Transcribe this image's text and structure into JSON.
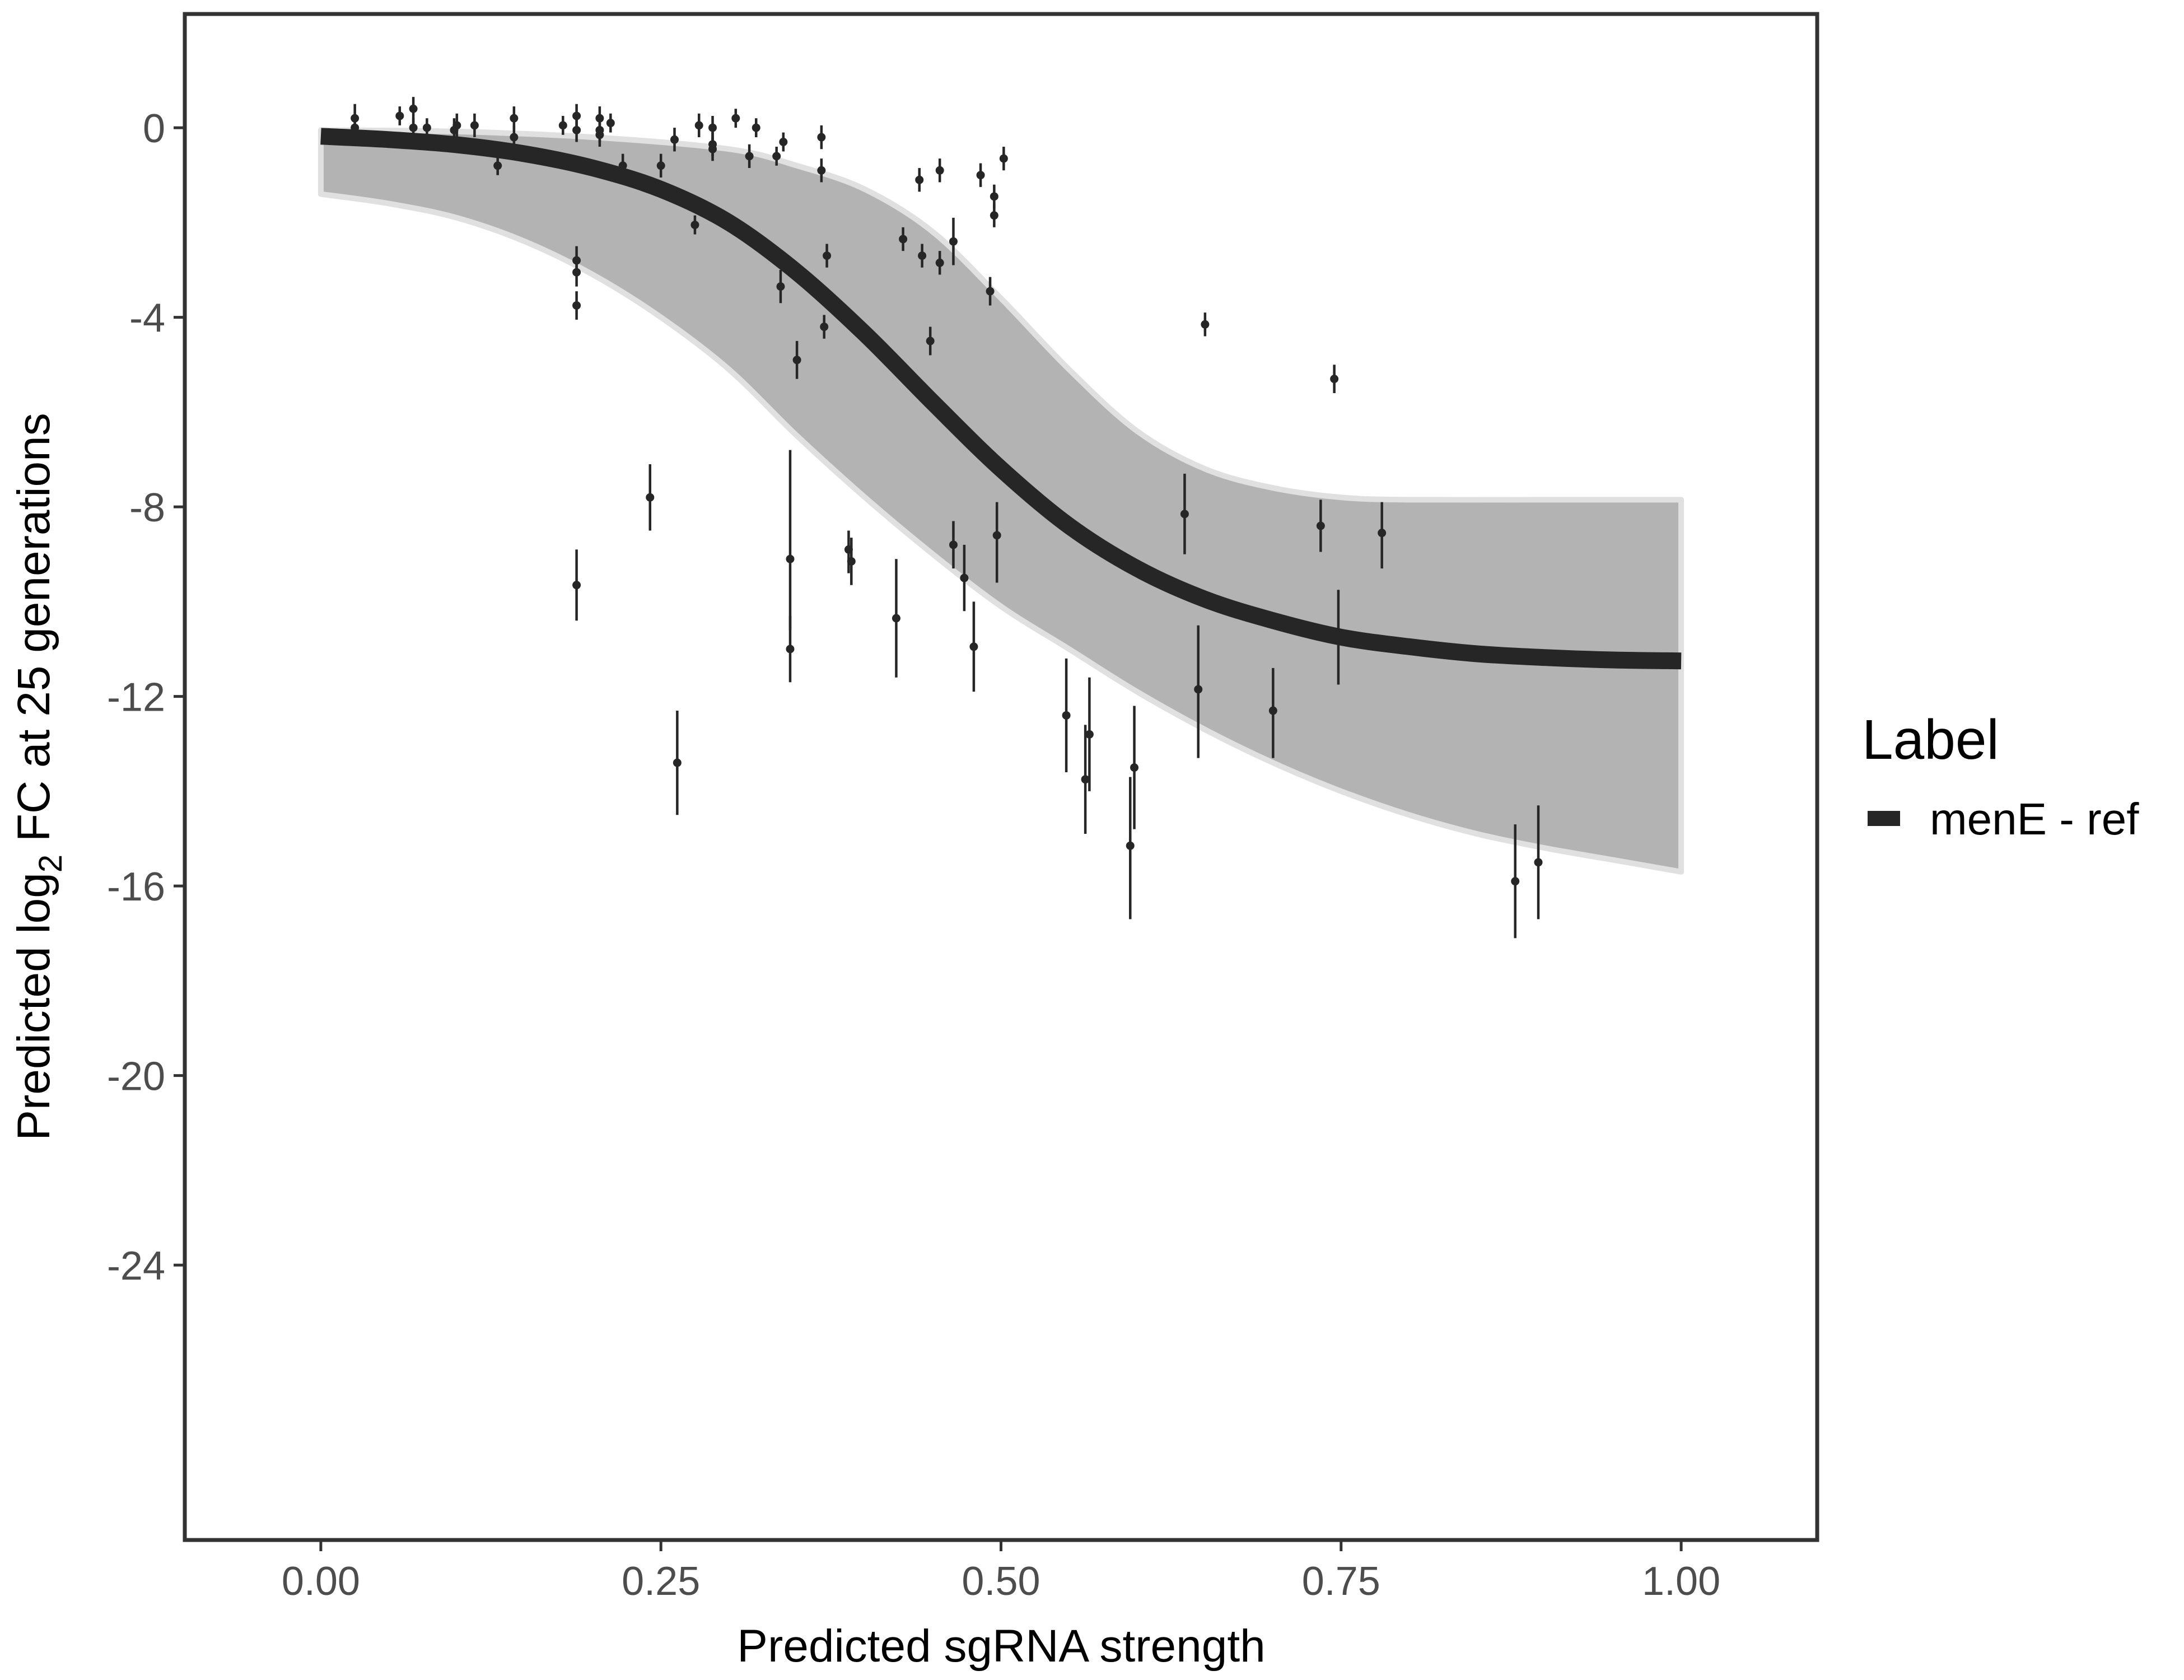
{
  "chart_data": {
    "type": "line",
    "title": "",
    "xlabel": "Predicted sgRNA strength",
    "ylabel_parts": {
      "before": "Predicted  log",
      "subscript": "2",
      "after": " FC at 25 generations"
    },
    "xlim": [
      -0.1,
      1.1
    ],
    "ylim": [
      -29.8,
      2.4
    ],
    "x_ticks": [
      {
        "value": 0.0,
        "label": "0.00"
      },
      {
        "value": 0.25,
        "label": "0.25"
      },
      {
        "value": 0.5,
        "label": "0.50"
      },
      {
        "value": 0.75,
        "label": "0.75"
      },
      {
        "value": 1.0,
        "label": "1.00"
      }
    ],
    "y_ticks": [
      {
        "value": 0,
        "label": "0"
      },
      {
        "value": -4,
        "label": "-4"
      },
      {
        "value": -8,
        "label": "-8"
      },
      {
        "value": -12,
        "label": "-12"
      },
      {
        "value": -16,
        "label": "-16"
      },
      {
        "value": -20,
        "label": "-20"
      },
      {
        "value": -24,
        "label": "-24"
      }
    ],
    "grid": false,
    "legend": {
      "title": "Label",
      "placement": "right",
      "entries": [
        {
          "label": "menE - ref",
          "color": "#262626"
        }
      ]
    },
    "fit_curve": {
      "name": "menE - ref",
      "color": "#262626",
      "points": [
        [
          0.0,
          -0.18
        ],
        [
          0.05,
          -0.25
        ],
        [
          0.1,
          -0.36
        ],
        [
          0.15,
          -0.55
        ],
        [
          0.2,
          -0.85
        ],
        [
          0.25,
          -1.3
        ],
        [
          0.3,
          -2.0
        ],
        [
          0.35,
          -3.05
        ],
        [
          0.4,
          -4.35
        ],
        [
          0.45,
          -5.8
        ],
        [
          0.5,
          -7.2
        ],
        [
          0.55,
          -8.4
        ],
        [
          0.6,
          -9.3
        ],
        [
          0.65,
          -9.95
        ],
        [
          0.7,
          -10.4
        ],
        [
          0.75,
          -10.75
        ],
        [
          0.8,
          -10.95
        ],
        [
          0.85,
          -11.1
        ],
        [
          0.9,
          -11.18
        ],
        [
          0.95,
          -11.23
        ],
        [
          1.0,
          -11.25
        ]
      ]
    },
    "posterior_band": {
      "color": "#a6a6a6",
      "upper": [
        [
          0.0,
          -0.05
        ],
        [
          0.1,
          -0.08
        ],
        [
          0.2,
          -0.2
        ],
        [
          0.3,
          -0.45
        ],
        [
          0.35,
          -0.8
        ],
        [
          0.4,
          -1.3
        ],
        [
          0.45,
          -2.2
        ],
        [
          0.5,
          -3.6
        ],
        [
          0.55,
          -5.1
        ],
        [
          0.6,
          -6.4
        ],
        [
          0.65,
          -7.2
        ],
        [
          0.7,
          -7.6
        ],
        [
          0.75,
          -7.8
        ],
        [
          0.8,
          -7.85
        ],
        [
          0.9,
          -7.85
        ],
        [
          1.0,
          -7.85
        ]
      ],
      "lower": [
        [
          0.0,
          -1.4
        ],
        [
          0.05,
          -1.6
        ],
        [
          0.1,
          -1.9
        ],
        [
          0.15,
          -2.4
        ],
        [
          0.2,
          -3.1
        ],
        [
          0.25,
          -4.0
        ],
        [
          0.3,
          -5.1
        ],
        [
          0.35,
          -6.5
        ],
        [
          0.4,
          -7.8
        ],
        [
          0.45,
          -9.0
        ],
        [
          0.5,
          -10.1
        ],
        [
          0.55,
          -11.0
        ],
        [
          0.6,
          -11.9
        ],
        [
          0.65,
          -12.7
        ],
        [
          0.7,
          -13.4
        ],
        [
          0.75,
          -14.0
        ],
        [
          0.8,
          -14.5
        ],
        [
          0.85,
          -14.9
        ],
        [
          0.9,
          -15.2
        ],
        [
          0.95,
          -15.45
        ],
        [
          1.0,
          -15.7
        ]
      ]
    },
    "points": [
      {
        "x": 0.025,
        "y": 0.2,
        "lo": -0.1,
        "hi": 0.5
      },
      {
        "x": 0.025,
        "y": 0.0,
        "lo": -0.2,
        "hi": 0.2
      },
      {
        "x": 0.058,
        "y": 0.25,
        "lo": 0.05,
        "hi": 0.45
      },
      {
        "x": 0.068,
        "y": 0.4,
        "lo": 0.1,
        "hi": 0.65
      },
      {
        "x": 0.068,
        "y": 0.0,
        "lo": -0.2,
        "hi": 0.2
      },
      {
        "x": 0.078,
        "y": 0.0,
        "lo": -0.2,
        "hi": 0.2
      },
      {
        "x": 0.098,
        "y": -0.05,
        "lo": -0.3,
        "hi": 0.2
      },
      {
        "x": 0.1,
        "y": 0.05,
        "lo": -0.2,
        "hi": 0.3
      },
      {
        "x": 0.113,
        "y": 0.05,
        "lo": -0.2,
        "hi": 0.3
      },
      {
        "x": 0.13,
        "y": -0.8,
        "lo": -1.0,
        "hi": -0.55
      },
      {
        "x": 0.142,
        "y": 0.2,
        "lo": -0.05,
        "hi": 0.45
      },
      {
        "x": 0.142,
        "y": -0.2,
        "lo": -0.45,
        "hi": 0.05
      },
      {
        "x": 0.178,
        "y": 0.05,
        "lo": -0.15,
        "hi": 0.25
      },
      {
        "x": 0.188,
        "y": 0.25,
        "lo": -0.05,
        "hi": 0.5
      },
      {
        "x": 0.188,
        "y": -0.05,
        "lo": -0.3,
        "hi": 0.2
      },
      {
        "x": 0.188,
        "y": -2.8,
        "lo": -3.1,
        "hi": -2.5
      },
      {
        "x": 0.188,
        "y": -3.05,
        "lo": -3.35,
        "hi": -2.75
      },
      {
        "x": 0.188,
        "y": -3.75,
        "lo": -4.05,
        "hi": -3.45
      },
      {
        "x": 0.188,
        "y": -9.65,
        "lo": -10.4,
        "hi": -8.9
      },
      {
        "x": 0.205,
        "y": 0.2,
        "lo": -0.05,
        "hi": 0.45
      },
      {
        "x": 0.205,
        "y": -0.05,
        "lo": -0.3,
        "hi": 0.2
      },
      {
        "x": 0.205,
        "y": -0.15,
        "lo": -0.4,
        "hi": 0.1
      },
      {
        "x": 0.213,
        "y": 0.1,
        "lo": -0.1,
        "hi": 0.3
      },
      {
        "x": 0.222,
        "y": -0.8,
        "lo": -1.05,
        "hi": -0.55
      },
      {
        "x": 0.242,
        "y": -7.8,
        "lo": -8.5,
        "hi": -7.1
      },
      {
        "x": 0.25,
        "y": -0.8,
        "lo": -1.05,
        "hi": -0.55
      },
      {
        "x": 0.26,
        "y": -0.25,
        "lo": -0.5,
        "hi": 0.0
      },
      {
        "x": 0.262,
        "y": -13.4,
        "lo": -14.5,
        "hi": -12.3
      },
      {
        "x": 0.275,
        "y": -2.05,
        "lo": -2.25,
        "hi": -1.85
      },
      {
        "x": 0.278,
        "y": 0.05,
        "lo": -0.2,
        "hi": 0.3
      },
      {
        "x": 0.288,
        "y": -0.35,
        "lo": -0.6,
        "hi": -0.1
      },
      {
        "x": 0.288,
        "y": -0.45,
        "lo": -0.7,
        "hi": -0.2
      },
      {
        "x": 0.288,
        "y": 0.0,
        "lo": -0.3,
        "hi": 0.25
      },
      {
        "x": 0.305,
        "y": 0.2,
        "lo": 0.0,
        "hi": 0.4
      },
      {
        "x": 0.315,
        "y": -0.6,
        "lo": -0.85,
        "hi": -0.35
      },
      {
        "x": 0.32,
        "y": 0.0,
        "lo": -0.2,
        "hi": 0.2
      },
      {
        "x": 0.335,
        "y": -0.6,
        "lo": -0.8,
        "hi": -0.4
      },
      {
        "x": 0.338,
        "y": -3.35,
        "lo": -3.7,
        "hi": -3.0
      },
      {
        "x": 0.34,
        "y": -0.3,
        "lo": -0.5,
        "hi": -0.1
      },
      {
        "x": 0.345,
        "y": -9.1,
        "lo": -10.6,
        "hi": -6.8
      },
      {
        "x": 0.345,
        "y": -11.0,
        "lo": -11.7,
        "hi": -10.3
      },
      {
        "x": 0.35,
        "y": -4.9,
        "lo": -5.3,
        "hi": -4.5
      },
      {
        "x": 0.368,
        "y": -0.2,
        "lo": -0.45,
        "hi": 0.05
      },
      {
        "x": 0.368,
        "y": -0.9,
        "lo": -1.15,
        "hi": -0.65
      },
      {
        "x": 0.37,
        "y": -4.2,
        "lo": -4.45,
        "hi": -3.95
      },
      {
        "x": 0.372,
        "y": -2.7,
        "lo": -2.95,
        "hi": -2.45
      },
      {
        "x": 0.388,
        "y": -8.9,
        "lo": -9.4,
        "hi": -8.5
      },
      {
        "x": 0.39,
        "y": -9.15,
        "lo": -9.65,
        "hi": -8.65
      },
      {
        "x": 0.423,
        "y": -10.35,
        "lo": -11.6,
        "hi": -9.1
      },
      {
        "x": 0.428,
        "y": -2.35,
        "lo": -2.6,
        "hi": -2.1
      },
      {
        "x": 0.44,
        "y": -1.1,
        "lo": -1.35,
        "hi": -0.85
      },
      {
        "x": 0.442,
        "y": -2.7,
        "lo": -2.95,
        "hi": -2.45
      },
      {
        "x": 0.448,
        "y": -4.5,
        "lo": -4.8,
        "hi": -4.2
      },
      {
        "x": 0.455,
        "y": -0.9,
        "lo": -1.15,
        "hi": -0.65
      },
      {
        "x": 0.455,
        "y": -2.85,
        "lo": -3.1,
        "hi": -2.6
      },
      {
        "x": 0.465,
        "y": -2.4,
        "lo": -2.9,
        "hi": -1.9
      },
      {
        "x": 0.465,
        "y": -8.8,
        "lo": -9.3,
        "hi": -8.3
      },
      {
        "x": 0.473,
        "y": -9.5,
        "lo": -10.2,
        "hi": -8.8
      },
      {
        "x": 0.48,
        "y": -10.95,
        "lo": -11.9,
        "hi": -10.0
      },
      {
        "x": 0.485,
        "y": -1.0,
        "lo": -1.25,
        "hi": -0.75
      },
      {
        "x": 0.492,
        "y": -3.45,
        "lo": -3.75,
        "hi": -3.15
      },
      {
        "x": 0.495,
        "y": -1.45,
        "lo": -1.7,
        "hi": -1.2
      },
      {
        "x": 0.495,
        "y": -1.85,
        "lo": -2.1,
        "hi": -1.6
      },
      {
        "x": 0.497,
        "y": -8.6,
        "lo": -9.6,
        "hi": -7.9
      },
      {
        "x": 0.502,
        "y": -0.65,
        "lo": -0.9,
        "hi": -0.4
      },
      {
        "x": 0.548,
        "y": -12.4,
        "lo": -13.6,
        "hi": -11.2
      },
      {
        "x": 0.562,
        "y": -13.75,
        "lo": -14.9,
        "hi": -12.6
      },
      {
        "x": 0.565,
        "y": -12.8,
        "lo": -14.0,
        "hi": -11.6
      },
      {
        "x": 0.595,
        "y": -15.15,
        "lo": -16.7,
        "hi": -13.7
      },
      {
        "x": 0.598,
        "y": -13.5,
        "lo": -14.8,
        "hi": -12.2
      },
      {
        "x": 0.635,
        "y": -8.15,
        "lo": -9.0,
        "hi": -7.3
      },
      {
        "x": 0.645,
        "y": -11.85,
        "lo": -13.3,
        "hi": -10.5
      },
      {
        "x": 0.65,
        "y": -4.15,
        "lo": -4.4,
        "hi": -3.9
      },
      {
        "x": 0.7,
        "y": -12.3,
        "lo": -13.3,
        "hi": -11.4
      },
      {
        "x": 0.735,
        "y": -8.4,
        "lo": -8.95,
        "hi": -7.85
      },
      {
        "x": 0.745,
        "y": -5.3,
        "lo": -5.6,
        "hi": -5.0
      },
      {
        "x": 0.748,
        "y": -10.75,
        "lo": -11.75,
        "hi": -9.75
      },
      {
        "x": 0.78,
        "y": -8.55,
        "lo": -9.3,
        "hi": -7.9
      },
      {
        "x": 0.878,
        "y": -15.9,
        "lo": -17.1,
        "hi": -14.7
      },
      {
        "x": 0.895,
        "y": -15.5,
        "lo": -16.7,
        "hi": -14.3
      }
    ]
  }
}
